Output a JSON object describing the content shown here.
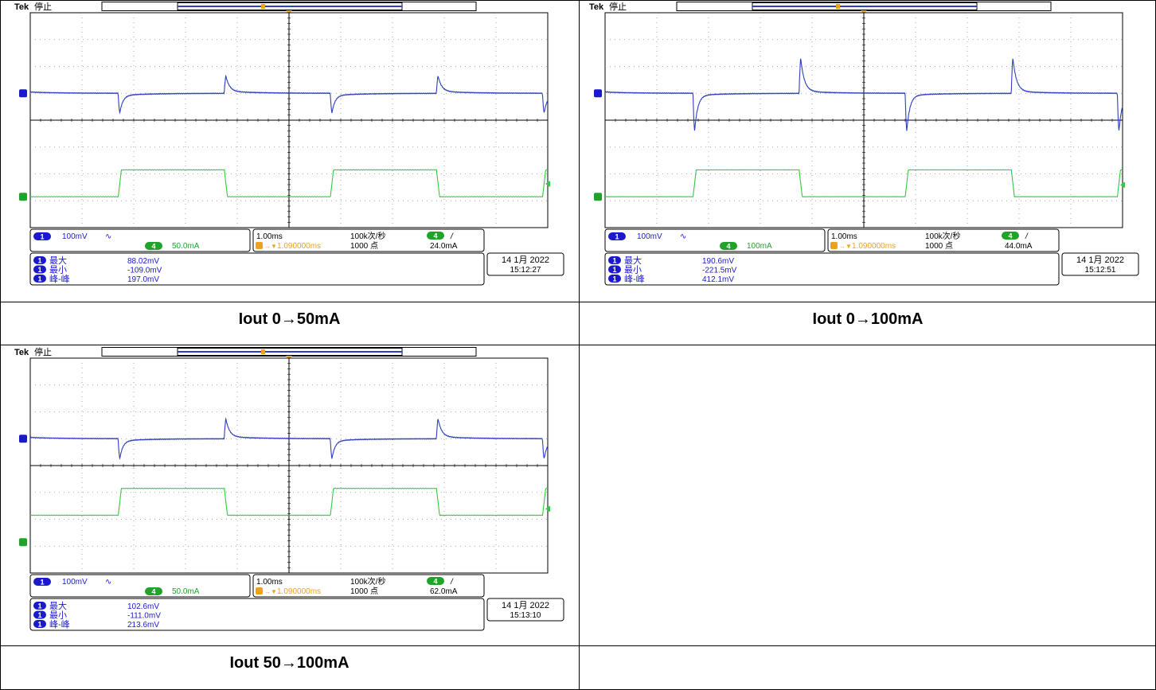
{
  "captions": [
    "Iout 0→50mA",
    "Iout 0→100mA",
    "Iout 50→100mA"
  ],
  "colors": {
    "ch1": "#2d3fbf",
    "ch4": "#2ecc40",
    "trigger": "#f0a020",
    "grid": "#909090",
    "badge_blue": "#1a1acc",
    "badge_green": "#1fa32b"
  },
  "chart_data": [
    {
      "type": "line",
      "brand": "Tek",
      "status": "停止",
      "trigger_marker": "T",
      "ch1": {
        "number": "1",
        "scale": "100mV",
        "coupling": "∿"
      },
      "ch4": {
        "number": "4",
        "scale": "50.0mA"
      },
      "timebase": "1.00ms",
      "sample_rate": "100k次/秒",
      "record_length": "1000 点",
      "trigger": {
        "channel": "4",
        "slope": "/",
        "level": "24.0mA",
        "position": "1.090000ms"
      },
      "measurements": [
        {
          "channel": "1",
          "label": "最大",
          "value": "88.02mV"
        },
        {
          "channel": "1",
          "label": "最小",
          "value": "-109.0mV"
        },
        {
          "channel": "1",
          "label": "峰-峰",
          "value": "197.0mV"
        }
      ],
      "date": "14 1月 2022",
      "time": "15:12:27",
      "series": [
        {
          "values_mV": {
            "baseline": 0,
            "max": 88.02,
            "min": -109.0
          }
        },
        {
          "values_mA": {
            "low": 0,
            "high": 50.0
          }
        }
      ]
    },
    {
      "type": "line",
      "brand": "Tek",
      "status": "停止",
      "trigger_marker": "T",
      "ch1": {
        "number": "1",
        "scale": "100mV",
        "coupling": "∿"
      },
      "ch4": {
        "number": "4",
        "scale": "100mA"
      },
      "timebase": "1.00ms",
      "sample_rate": "100k次/秒",
      "record_length": "1000 点",
      "trigger": {
        "channel": "4",
        "slope": "/",
        "level": "44.0mA",
        "position": "1.090000ms"
      },
      "measurements": [
        {
          "channel": "1",
          "label": "最大",
          "value": "190.6mV"
        },
        {
          "channel": "1",
          "label": "最小",
          "value": "-221.5mV"
        },
        {
          "channel": "1",
          "label": "峰-峰",
          "value": "412.1mV"
        }
      ],
      "date": "14 1月 2022",
      "time": "15:12:51",
      "series": [
        {
          "values_mV": {
            "baseline": 0,
            "max": 190.6,
            "min": -221.5
          }
        },
        {
          "values_mA": {
            "low": 0,
            "high": 100.0
          }
        }
      ]
    },
    {
      "type": "line",
      "brand": "Tek",
      "status": "停止",
      "trigger_marker": "T",
      "ch1": {
        "number": "1",
        "scale": "100mV",
        "coupling": "∿"
      },
      "ch4": {
        "number": "4",
        "scale": "50.0mA"
      },
      "timebase": "1.00ms",
      "sample_rate": "100k次/秒",
      "record_length": "1000 点",
      "trigger": {
        "channel": "4",
        "slope": "/",
        "level": "62.0mA",
        "position": "1.090000ms"
      },
      "measurements": [
        {
          "channel": "1",
          "label": "最大",
          "value": "102.6mV"
        },
        {
          "channel": "1",
          "label": "最小",
          "value": "-111.0mV"
        },
        {
          "channel": "1",
          "label": "峰-峰",
          "value": "213.6mV"
        }
      ],
      "date": "14 1月 2022",
      "time": "15:13:10",
      "series": [
        {
          "values_mV": {
            "baseline": 0,
            "max": 102.6,
            "min": -111.0
          }
        },
        {
          "values_mA": {
            "low": 50.0,
            "high": 100.0
          }
        }
      ]
    }
  ]
}
